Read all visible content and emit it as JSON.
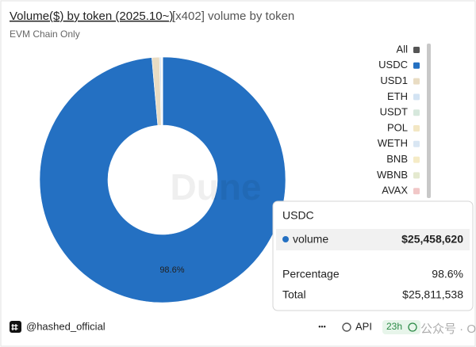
{
  "header": {
    "title": "Volume($) by token (2025.10~)",
    "subtitle_inline": "[x402] volume by token",
    "note": "EVM Chain Only"
  },
  "chart_data": {
    "type": "donut",
    "categories": [
      "USDC",
      "USD1",
      "ETH",
      "USDT",
      "POL",
      "WETH",
      "BNB",
      "WBNB",
      "AVAX"
    ],
    "values": [
      98.6,
      1.0,
      0.2,
      0.1,
      0.03,
      0.03,
      0.02,
      0.01,
      0.01
    ],
    "value_labels": [
      "98.6%",
      null,
      null,
      null,
      null,
      null,
      null,
      null,
      null
    ],
    "colors": [
      "#2470c2",
      "#e9dcc3",
      "#d3e3f3",
      "#d6e8dc",
      "#f3e7c4",
      "#d9e6f3",
      "#f5ebc6",
      "#e4e9cf",
      "#f1c7c7"
    ],
    "legend_all": "All",
    "legend_all_color": "#555555",
    "legend": "right"
  },
  "tooltip": {
    "title": "USDC",
    "series": "volume",
    "series_value": "$25,458,620",
    "percentage_label": "Percentage",
    "percentage_value": "98.6%",
    "total_label": "Total",
    "total_value": "$25,811,538"
  },
  "footer": {
    "user": "@hashed_official",
    "more": "•••",
    "api": "API",
    "age": "23h"
  },
  "watermarks": {
    "dune": "Dune",
    "odaily": "公众号 · Odaily"
  }
}
